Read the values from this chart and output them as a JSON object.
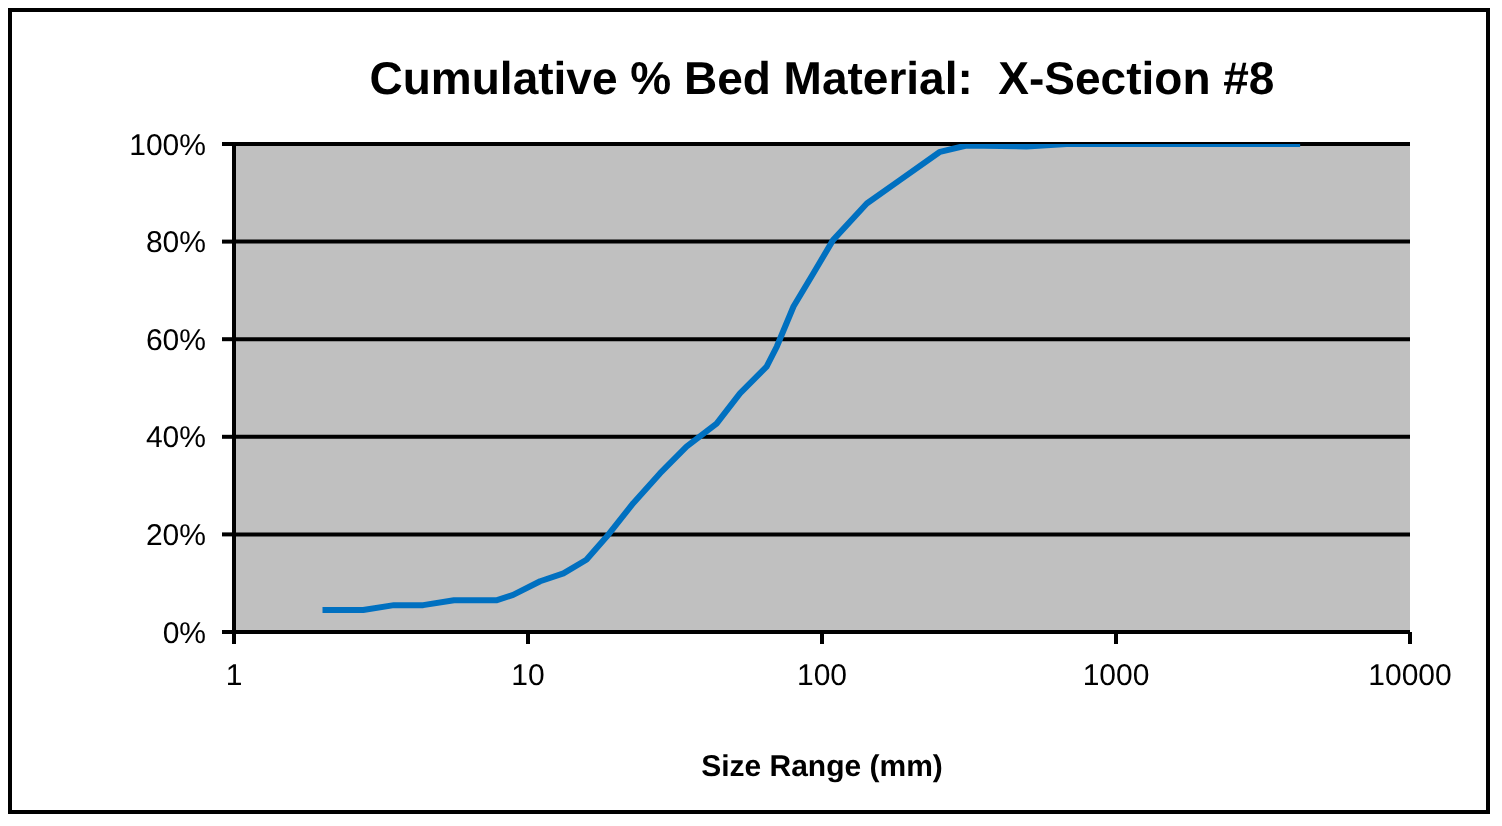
{
  "chart_data": {
    "type": "line",
    "title": "Cumulative % Bed Material:  X-Section #8",
    "xlabel": "Size Range (mm)",
    "x": [
      2,
      2.75,
      3.5,
      4.4,
      5.6,
      7.8,
      8.9,
      11,
      13.2,
      15.8,
      18.5,
      22.8,
      28.1,
      34.6,
      43.8,
      52.6,
      64.8,
      70.2,
      80,
      93.5,
      109,
      142,
      184,
      252,
      310,
      496,
      680,
      4230
    ],
    "series": [
      {
        "color": "#0070c0",
        "values": [
          4.5,
          4.5,
          5.5,
          5.5,
          6.5,
          6.5,
          7.6,
          10.4,
          12,
          14.8,
          19.5,
          26.4,
          32.5,
          38,
          42.7,
          48.9,
          54.4,
          58.5,
          66.7,
          73.5,
          80.3,
          87.8,
          92.6,
          98.4,
          99.7,
          99.5,
          100,
          100
        ]
      }
    ],
    "log": "x",
    "xlim": [
      1,
      10000
    ],
    "xticks": [
      1,
      10,
      100,
      1000,
      10000
    ],
    "ylim": [
      0,
      100
    ],
    "yticks": [
      {
        "value": 0,
        "label": "0%"
      },
      {
        "value": 20,
        "label": "20%"
      },
      {
        "value": 40,
        "label": "40%"
      },
      {
        "value": 60,
        "label": "60%"
      },
      {
        "value": 80,
        "label": "80%"
      },
      {
        "value": 100,
        "label": "100%"
      }
    ],
    "grid": "y",
    "legend": false,
    "marker": "none",
    "line_style": "solid"
  }
}
